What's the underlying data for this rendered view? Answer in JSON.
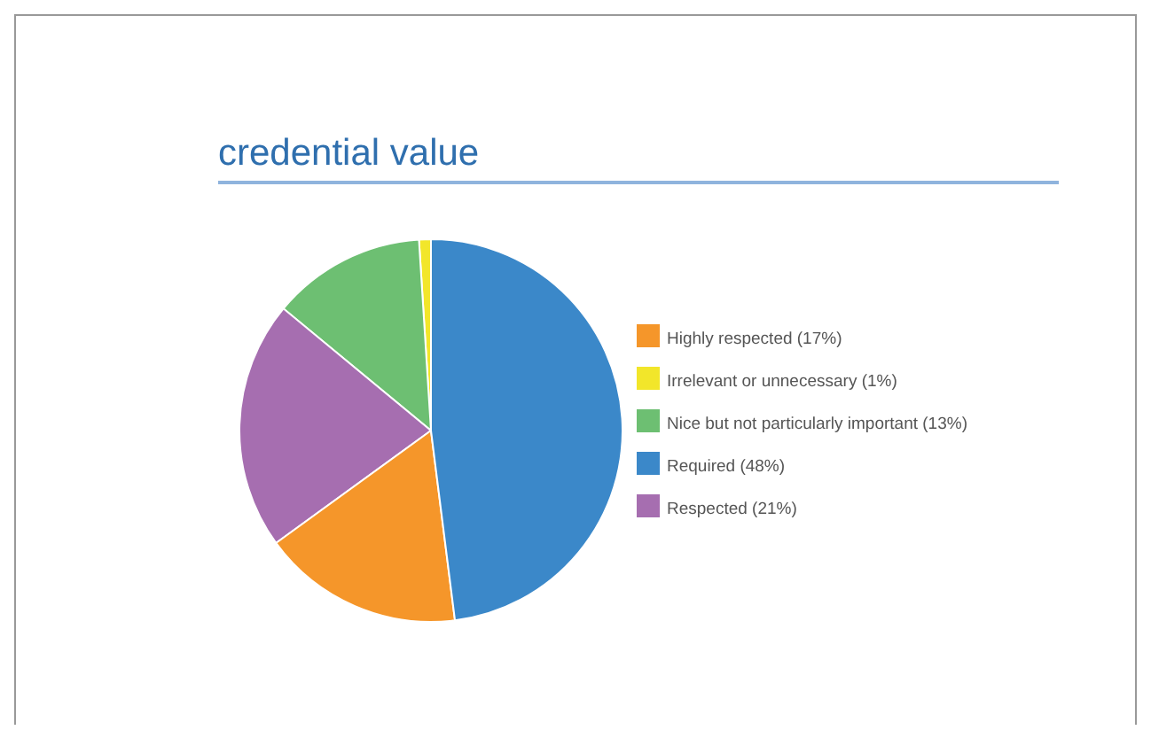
{
  "chart_data": {
    "type": "pie",
    "title": "credential value",
    "categories": [
      "Irrelevant or unnecessary (1%)",
      "Nice but not particularly important (13%)",
      "Respected (21%)",
      "Highly respected (17%)",
      "Required (48%)"
    ],
    "values": [
      1,
      13,
      21,
      17,
      48
    ],
    "colors": [
      "#f2e62a",
      "#6dbf72",
      "#a66eb0",
      "#f5962a",
      "#3b88c9"
    ],
    "legend": "right"
  }
}
